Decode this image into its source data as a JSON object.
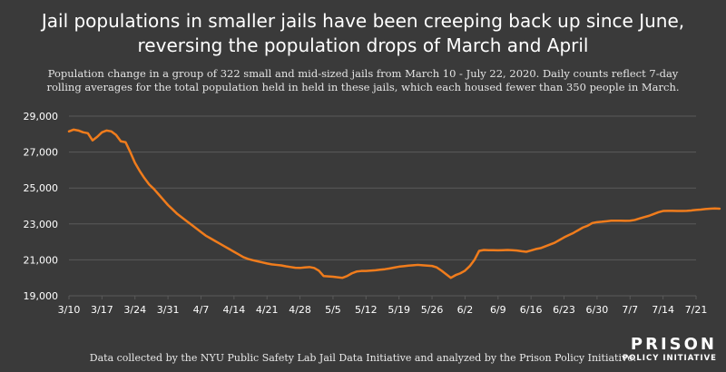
{
  "title_line1": "Jail populations in smaller jails have been creeping back up since June,",
  "title_line2": "reversing the population drops of March and April",
  "subtitle_line1": "Population change in a group of 322 small and mid-sized jails from March 10 - July 22, 2020. Daily counts reflect 7-day",
  "subtitle_line2": "rolling averages for the total population held in held in these jails, which each housed fewer than 350 people in March.",
  "source": "Data collected by the NYU Public Safety Lab Jail Data Initiative and analyzed by the Prison Policy Initiative.",
  "logo": {
    "line1": "PRISON",
    "line2": "POLICY INITIATIVE"
  },
  "colors": {
    "background": "#3a3a3a",
    "line": "#f07c1c",
    "grid": "#5a5a5a",
    "text": "#ffffff"
  },
  "chart_data": {
    "type": "line",
    "title": "Jail populations in smaller jails have been creeping back up since June, reversing the population drops of March and April",
    "xlabel": "",
    "ylabel": "",
    "ylim": [
      19000,
      29000
    ],
    "yticks": [
      19000,
      21000,
      23000,
      25000,
      27000,
      29000
    ],
    "ytick_labels": [
      "19,000",
      "21,000",
      "23,000",
      "25,000",
      "27,000",
      "29,000"
    ],
    "xticks": [
      "3/10",
      "3/17",
      "3/24",
      "3/31",
      "4/7",
      "4/14",
      "4/21",
      "4/28",
      "5/5",
      "5/12",
      "5/19",
      "5/26",
      "6/2",
      "6/9",
      "6/16",
      "6/23",
      "6/30",
      "7/7",
      "7/14",
      "7/21"
    ],
    "grid": true,
    "legend": "none",
    "series": [
      {
        "values": [
          28150,
          28250,
          28200,
          28100,
          28050,
          27650,
          27850,
          28100,
          28200,
          28150,
          27950,
          27600,
          27550,
          27000,
          26400,
          25950,
          25550,
          25200,
          24950,
          24650,
          24350,
          24050,
          23800,
          23550,
          23350,
          23150,
          22950,
          22750,
          22550,
          22350,
          22200,
          22050,
          21900,
          21750,
          21600,
          21450,
          21300,
          21150,
          21050,
          20980,
          20920,
          20860,
          20800,
          20750,
          20720,
          20690,
          20640,
          20600,
          20560,
          20550,
          20580,
          20600,
          20550,
          20400,
          20100,
          20080,
          20060,
          20030,
          20000,
          20100,
          20250,
          20350,
          20380,
          20380,
          20400,
          20420,
          20450,
          20480,
          20520,
          20570,
          20620,
          20650,
          20680,
          20700,
          20720,
          20700,
          20680,
          20660,
          20580,
          20400,
          20200,
          20000,
          20150,
          20250,
          20400,
          20650,
          21000,
          21500,
          21550,
          21540,
          21540,
          21530,
          21540,
          21550,
          21540,
          21520,
          21480,
          21450,
          21520,
          21600,
          21650,
          21750,
          21850,
          21950,
          22100,
          22250,
          22380,
          22500,
          22650,
          22800,
          22900,
          23050,
          23100,
          23120,
          23150,
          23180,
          23180,
          23180,
          23170,
          23180,
          23220,
          23300,
          23380,
          23450,
          23550,
          23650,
          23720,
          23730,
          23730,
          23720,
          23720,
          23730,
          23750,
          23780,
          23800,
          23830,
          23850,
          23860,
          23850
        ]
      }
    ]
  }
}
